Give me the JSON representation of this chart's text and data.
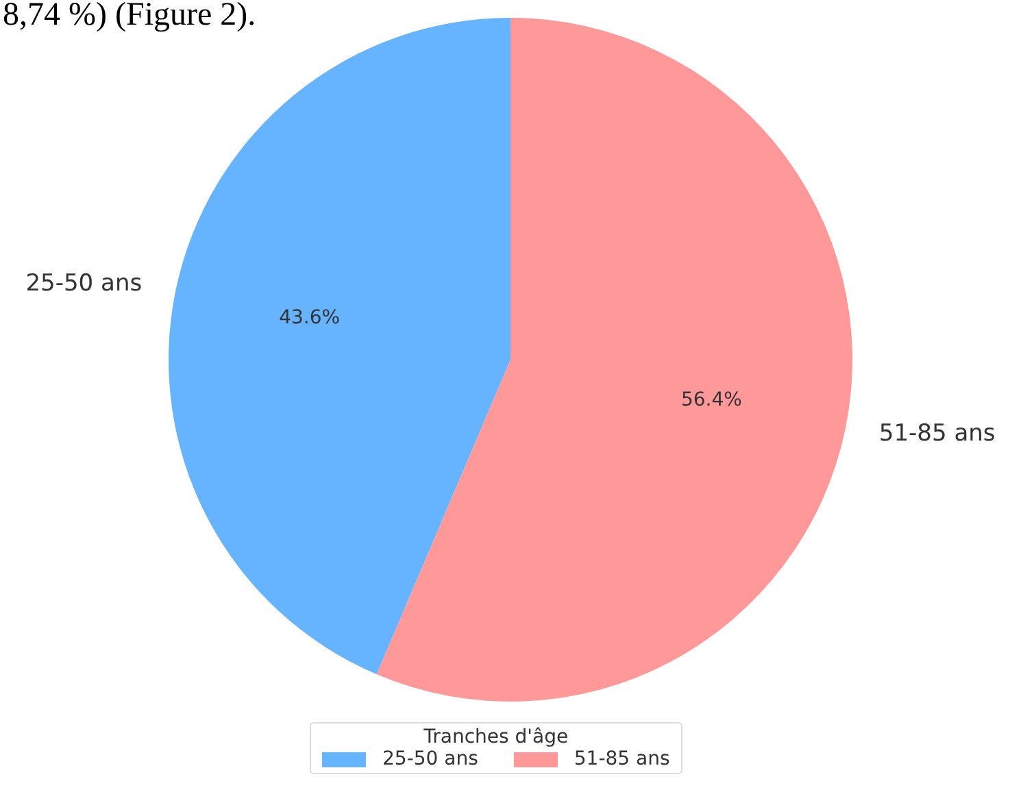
{
  "chart_data": {
    "type": "pie",
    "legend_title": "Tranches d'âge",
    "legend": "bottom",
    "categories": [
      "25-50 ans",
      "51-85 ans"
    ],
    "values": [
      43.6,
      56.4
    ],
    "colors": [
      "#66b3ff",
      "#ff9999"
    ],
    "value_labels": [
      "43.6%",
      "56.4%"
    ],
    "annotations": [
      "8,74 %) (Figure 2)."
    ]
  }
}
